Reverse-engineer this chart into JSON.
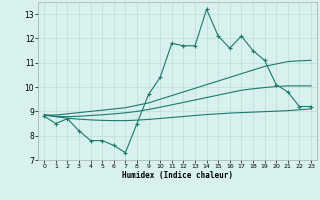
{
  "x": [
    0,
    1,
    2,
    3,
    4,
    5,
    6,
    7,
    8,
    9,
    10,
    11,
    12,
    13,
    14,
    15,
    16,
    17,
    18,
    19,
    20,
    21,
    22,
    23
  ],
  "y_main": [
    8.8,
    8.5,
    8.7,
    8.2,
    7.8,
    7.8,
    7.6,
    7.3,
    8.5,
    9.7,
    10.4,
    11.8,
    11.7,
    11.7,
    13.2,
    12.1,
    11.6,
    12.1,
    11.5,
    11.1,
    10.1,
    9.8,
    9.2,
    9.2
  ],
  "y_upper": [
    8.85,
    8.85,
    8.9,
    8.95,
    9.0,
    9.05,
    9.1,
    9.15,
    9.25,
    9.35,
    9.5,
    9.65,
    9.8,
    9.95,
    10.1,
    10.25,
    10.4,
    10.55,
    10.7,
    10.85,
    10.95,
    11.05,
    11.08,
    11.1
  ],
  "y_mid": [
    8.85,
    8.8,
    8.78,
    8.8,
    8.83,
    8.86,
    8.9,
    8.94,
    9.0,
    9.08,
    9.17,
    9.27,
    9.37,
    9.47,
    9.57,
    9.67,
    9.77,
    9.87,
    9.93,
    9.98,
    10.02,
    10.05,
    10.05,
    10.05
  ],
  "y_lower": [
    8.85,
    8.78,
    8.72,
    8.68,
    8.65,
    8.63,
    8.62,
    8.62,
    8.64,
    8.67,
    8.71,
    8.75,
    8.79,
    8.83,
    8.87,
    8.9,
    8.93,
    8.95,
    8.97,
    8.99,
    9.01,
    9.03,
    9.07,
    9.1
  ],
  "line_color": "#1a7a6e",
  "bg_color": "#d8f0ee",
  "grid_color": "#c0dcd8",
  "xlabel": "Humidex (Indice chaleur)",
  "ylim": [
    7,
    13.5
  ],
  "xlim": [
    -0.5,
    23.5
  ],
  "yticks": [
    7,
    8,
    9,
    10,
    11,
    12,
    13
  ]
}
